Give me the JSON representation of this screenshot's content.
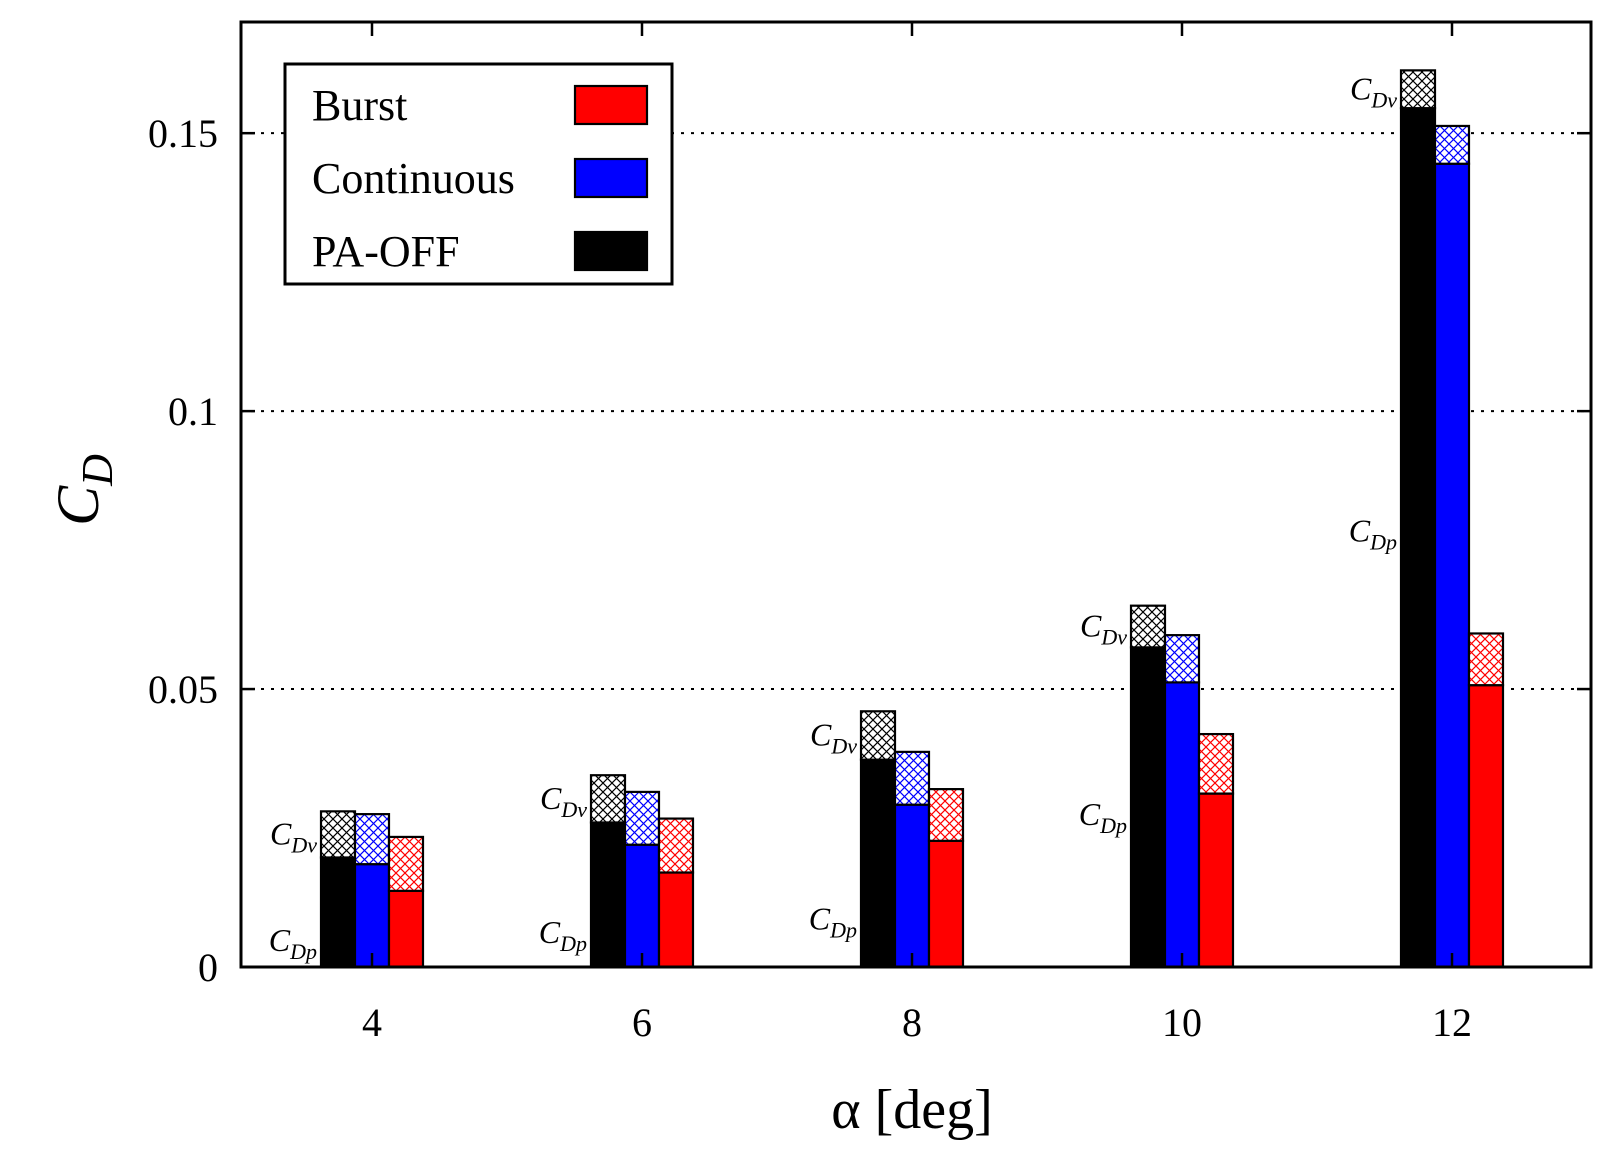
{
  "chart_data": {
    "type": "bar",
    "stacked": true,
    "title": "",
    "xlabel": "α [deg]",
    "ylabel_main": "C",
    "ylabel_sub": "D",
    "categories": [
      "4",
      "6",
      "8",
      "10",
      "12"
    ],
    "ylim": [
      0,
      0.17
    ],
    "yticks": [
      0,
      0.05,
      0.1,
      0.15
    ],
    "ytick_labels": [
      "0",
      "0.05",
      "0.1",
      "0.15"
    ],
    "grid": "horizontal dotted",
    "legend_position": "top-left",
    "components": [
      {
        "key": "cdp",
        "label_main": "C",
        "label_sub": "Dp",
        "fill": "solid"
      },
      {
        "key": "cdv",
        "label_main": "C",
        "label_sub": "Dv",
        "fill": "crosshatch"
      }
    ],
    "series": [
      {
        "name": "PA-OFF",
        "color": "#000000",
        "cdp": [
          0.0197,
          0.026,
          0.0373,
          0.0575,
          0.1545
        ],
        "cdv": [
          0.0083,
          0.0085,
          0.0087,
          0.0075,
          0.0068
        ]
      },
      {
        "name": "Continuous",
        "color": "#0000ff",
        "cdp": [
          0.0185,
          0.022,
          0.0292,
          0.0512,
          0.1445
        ],
        "cdv": [
          0.009,
          0.0095,
          0.0095,
          0.0085,
          0.0068
        ]
      },
      {
        "name": "Burst",
        "color": "#ff0000",
        "cdp": [
          0.0137,
          0.017,
          0.0227,
          0.0312,
          0.0507
        ],
        "cdv": [
          0.0097,
          0.0097,
          0.0093,
          0.0107,
          0.0093
        ]
      }
    ],
    "legend_order": [
      "Burst",
      "Continuous",
      "PA-OFF"
    ]
  }
}
